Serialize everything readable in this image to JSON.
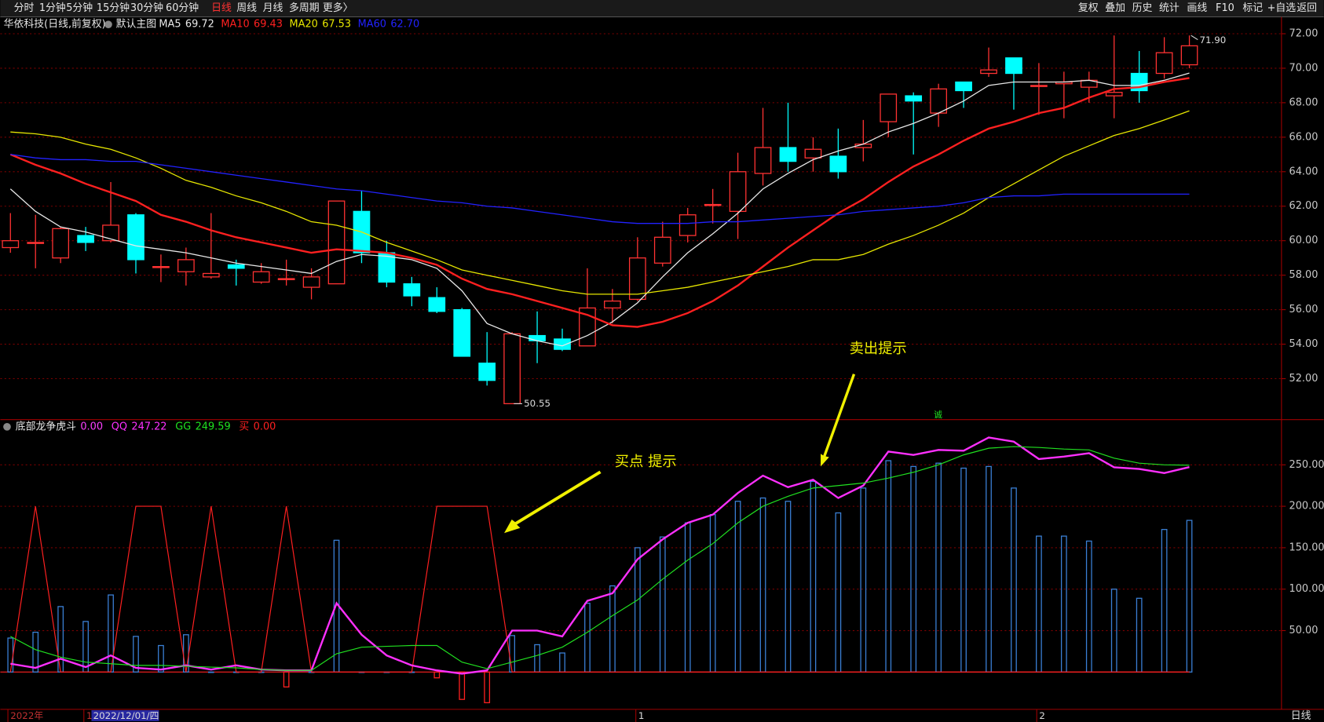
{
  "ui": {
    "toolbar_left": [
      "分时",
      "1分钟",
      "5分钟",
      "15分钟",
      "30分钟",
      "60分钟",
      "日线",
      "周线",
      "月线",
      "多周期",
      "更多〉"
    ],
    "toolbar_right": [
      "复权",
      "叠加",
      "历史",
      "统计",
      "画线",
      "F10",
      "标记",
      "+自选",
      "返回"
    ],
    "stock_title": "华依科技(日线,前复权)",
    "main_template": "默认主图",
    "x_axis_labels": [
      "2022年",
      "1",
      "2022/12/01/四",
      "1",
      "2"
    ],
    "period": "日线"
  },
  "chart_data": [
    {
      "type": "candlestick",
      "up_color": "#ff3232",
      "down_color": "#00ffff",
      "open": [
        59.6,
        59.9,
        59.0,
        60.3,
        60.0,
        61.5,
        58.5,
        58.2,
        57.9,
        58.6,
        57.6,
        57.8,
        57.3,
        57.5,
        61.7,
        59.3,
        57.5,
        56.7,
        56.0,
        52.9,
        50.55,
        54.5,
        54.3,
        53.9,
        56.1,
        56.6,
        58.7,
        60.3,
        62.1,
        61.7,
        63.9,
        65.4,
        64.8,
        64.9,
        65.4,
        66.9,
        68.4,
        67.4,
        69.2,
        69.7,
        70.6,
        69.0,
        69.1,
        68.9,
        68.4,
        69.7,
        69.7,
        70.2
      ],
      "close": [
        60.0,
        59.9,
        60.7,
        59.9,
        60.9,
        58.9,
        58.5,
        58.9,
        58.1,
        58.4,
        58.2,
        57.8,
        57.9,
        62.3,
        59.3,
        57.6,
        56.8,
        55.9,
        53.3,
        51.9,
        54.6,
        54.2,
        53.7,
        56.1,
        56.5,
        59.0,
        60.2,
        61.5,
        62.1,
        64.0,
        65.4,
        64.6,
        65.3,
        64.0,
        65.6,
        68.5,
        68.1,
        68.8,
        68.7,
        69.9,
        69.7,
        69.0,
        69.2,
        69.3,
        68.6,
        68.7,
        70.9,
        71.3
      ],
      "high": [
        61.6,
        61.5,
        60.8,
        60.8,
        63.4,
        61.6,
        59.2,
        59.6,
        61.6,
        58.9,
        58.7,
        58.9,
        58.4,
        62.3,
        62.9,
        60.0,
        57.9,
        57.3,
        56.1,
        54.7,
        54.7,
        55.9,
        54.9,
        58.4,
        57.2,
        60.2,
        61.1,
        61.9,
        63.0,
        65.1,
        67.7,
        68.0,
        66.0,
        66.5,
        67.0,
        68.5,
        68.6,
        69.1,
        69.2,
        71.2,
        70.6,
        70.3,
        69.8,
        69.8,
        71.9,
        71.0,
        71.8,
        71.9
      ],
      "low": [
        59.3,
        58.4,
        58.7,
        59.4,
        59.9,
        58.1,
        57.6,
        57.4,
        57.8,
        57.4,
        57.5,
        57.4,
        56.6,
        57.5,
        58.7,
        57.3,
        56.2,
        55.8,
        53.3,
        51.6,
        50.55,
        52.9,
        53.6,
        53.9,
        55.2,
        56.5,
        58.5,
        59.9,
        61.0,
        60.1,
        63.2,
        64.0,
        64.0,
        63.6,
        64.6,
        66.0,
        65.0,
        66.6,
        67.7,
        69.5,
        67.6,
        67.3,
        67.1,
        68.0,
        67.1,
        68.0,
        69.4,
        70.0
      ],
      "high_labels": [
        null,
        null,
        null,
        null,
        null,
        null,
        null,
        null,
        null,
        null,
        null,
        null,
        null,
        null,
        null,
        null,
        null,
        null,
        null,
        null,
        null,
        null,
        null,
        null,
        null,
        null,
        null,
        null,
        null,
        null,
        null,
        null,
        null,
        null,
        null,
        null,
        null,
        null,
        null,
        null,
        null,
        null,
        null,
        null,
        null,
        null,
        null,
        "71.90"
      ],
      "low_labels": [
        null,
        null,
        null,
        null,
        null,
        null,
        null,
        null,
        null,
        null,
        null,
        null,
        null,
        null,
        null,
        null,
        null,
        null,
        null,
        null,
        "50.55",
        null,
        null,
        null,
        null,
        null,
        null,
        null,
        null,
        null,
        null,
        null,
        null,
        null,
        null,
        null,
        null,
        null,
        null,
        null,
        null,
        null,
        null,
        null,
        null,
        null,
        null,
        null
      ],
      "series": [
        {
          "name": "MA5",
          "value_label": "69.72",
          "color": "#e8e8e8",
          "values": [
            63.0,
            61.7,
            60.8,
            60.5,
            60.1,
            59.7,
            59.5,
            59.3,
            59.0,
            58.7,
            58.5,
            58.3,
            58.1,
            58.8,
            59.2,
            59.1,
            58.9,
            58.4,
            57.1,
            55.2,
            54.6,
            54.2,
            53.9,
            54.5,
            55.3,
            56.4,
            57.9,
            59.3,
            60.4,
            61.6,
            63.0,
            63.9,
            64.7,
            65.2,
            65.6,
            66.3,
            66.8,
            67.4,
            68.1,
            69.0,
            69.2,
            69.2,
            69.2,
            69.3,
            69.0,
            69.0,
            69.3,
            69.72
          ]
        },
        {
          "name": "MA10",
          "value_label": "69.43",
          "color": "#ff2020",
          "values": [
            65.0,
            64.4,
            63.9,
            63.3,
            62.8,
            62.3,
            61.5,
            61.1,
            60.6,
            60.2,
            59.9,
            59.6,
            59.3,
            59.5,
            59.4,
            59.3,
            59.0,
            58.6,
            57.8,
            57.2,
            56.9,
            56.5,
            56.1,
            55.7,
            55.1,
            55.0,
            55.3,
            55.8,
            56.5,
            57.4,
            58.5,
            59.6,
            60.6,
            61.6,
            62.4,
            63.4,
            64.3,
            65.0,
            65.8,
            66.5,
            66.9,
            67.4,
            67.7,
            68.3,
            68.8,
            68.9,
            69.2,
            69.43
          ]
        },
        {
          "name": "MA20",
          "value_label": "67.53",
          "color": "#e6e600",
          "values": [
            66.3,
            66.2,
            66.0,
            65.6,
            65.3,
            64.8,
            64.2,
            63.5,
            63.1,
            62.6,
            62.2,
            61.7,
            61.1,
            60.9,
            60.5,
            59.9,
            59.4,
            58.9,
            58.3,
            58.0,
            57.7,
            57.4,
            57.1,
            56.9,
            56.9,
            56.9,
            57.1,
            57.3,
            57.6,
            57.9,
            58.2,
            58.5,
            58.9,
            58.9,
            59.2,
            59.8,
            60.3,
            60.9,
            61.6,
            62.5,
            63.3,
            64.1,
            64.9,
            65.5,
            66.1,
            66.5,
            67.0,
            67.53
          ]
        },
        {
          "name": "MA60",
          "value_label": "62.70",
          "color": "#2222ff",
          "values": [
            65.0,
            64.8,
            64.7,
            64.7,
            64.6,
            64.6,
            64.4,
            64.2,
            64.0,
            63.8,
            63.6,
            63.4,
            63.2,
            63.0,
            62.9,
            62.7,
            62.5,
            62.3,
            62.2,
            62.0,
            61.9,
            61.7,
            61.5,
            61.3,
            61.1,
            61.0,
            61.0,
            61.0,
            61.1,
            61.1,
            61.2,
            61.3,
            61.4,
            61.5,
            61.7,
            61.8,
            61.9,
            62.0,
            62.2,
            62.5,
            62.6,
            62.6,
            62.7,
            62.7,
            62.7,
            62.7,
            62.7,
            62.7
          ]
        }
      ],
      "ylim": [
        49.65,
        72.88
      ],
      "yticks": [
        {
          "value": 52,
          "label": "52.00"
        },
        {
          "value": 54,
          "label": "54.00"
        },
        {
          "value": 56,
          "label": "56.00"
        },
        {
          "value": 58,
          "label": "58.00"
        },
        {
          "value": 60,
          "label": "60.00"
        },
        {
          "value": 62,
          "label": "62.00"
        },
        {
          "value": 64,
          "label": "64.00"
        },
        {
          "value": 66,
          "label": "66.00"
        },
        {
          "value": 68,
          "label": "68.00"
        },
        {
          "value": 70,
          "label": "70.00"
        },
        {
          "value": 72,
          "label": "72.00"
        }
      ],
      "grid": true
    },
    {
      "type": "combo",
      "annotations": [
        "买点 提示",
        "卖出提示",
        "诚"
      ],
      "series": [
        {
          "kind": "bar",
          "color": "#3a7fd5",
          "neg_color": "#ff2020",
          "values": [
            41,
            48,
            79,
            61,
            93,
            43,
            32,
            45,
            0,
            0,
            0,
            -18,
            0,
            159,
            0,
            0,
            0,
            -7,
            -33,
            -37,
            44,
            33,
            23,
            83,
            104,
            150,
            163,
            180,
            190,
            206,
            210,
            206,
            230,
            192,
            222,
            255,
            248,
            252,
            246,
            248,
            222,
            164,
            164,
            158,
            100,
            89,
            172,
            183
          ]
        },
        {
          "kind": "line",
          "name": "底部龙争虎斗",
          "value_label": "0.00",
          "color": "#ff2020",
          "legend_color": "#ff40ff",
          "values": [
            0,
            200,
            0,
            0,
            0,
            200,
            200,
            0,
            200,
            0,
            0,
            200,
            0,
            0,
            0,
            0,
            0,
            200,
            200,
            200,
            0,
            0,
            0,
            0,
            0,
            0,
            0,
            0,
            0,
            0,
            0,
            0,
            0,
            0,
            0,
            0,
            0,
            0,
            0,
            0,
            0,
            0,
            0,
            0,
            0,
            0,
            0,
            0
          ]
        },
        {
          "kind": "line",
          "name": "QQ",
          "value_label": "247.22",
          "color": "#ff30ff",
          "width": 2.2,
          "values": [
            10,
            5,
            16,
            6,
            20,
            5,
            3,
            8,
            3,
            8,
            3,
            2,
            2,
            83,
            45,
            20,
            8,
            2,
            -2,
            2,
            50,
            50,
            43,
            86,
            95,
            136,
            160,
            180,
            190,
            216,
            237,
            223,
            232,
            210,
            225,
            266,
            262,
            268,
            267,
            283,
            278,
            257,
            260,
            264,
            247,
            245,
            240,
            247.22
          ]
        },
        {
          "kind": "line",
          "name": "GG",
          "value_label": "249.59",
          "color": "#20e020",
          "values": [
            43,
            27,
            18,
            12,
            10,
            8,
            8,
            7,
            6,
            5,
            3,
            2,
            2,
            22,
            30,
            31,
            32,
            32,
            12,
            4,
            12,
            20,
            30,
            48,
            68,
            87,
            112,
            135,
            155,
            180,
            200,
            212,
            222,
            225,
            228,
            234,
            241,
            250,
            262,
            270,
            272,
            271,
            269,
            268,
            258,
            252,
            250,
            249.59
          ]
        },
        {
          "kind": "none",
          "name": "买",
          "value_label": "0.00",
          "color": "#ff2020"
        }
      ],
      "ylim": [
        -44,
        302
      ],
      "yticks": [
        {
          "value": 50,
          "label": "50.00"
        },
        {
          "value": 100,
          "label": "100.00"
        },
        {
          "value": 150,
          "label": "150.00"
        },
        {
          "value": 200,
          "label": "200.00"
        },
        {
          "value": 250,
          "label": "250.00"
        }
      ],
      "grid": true
    }
  ]
}
